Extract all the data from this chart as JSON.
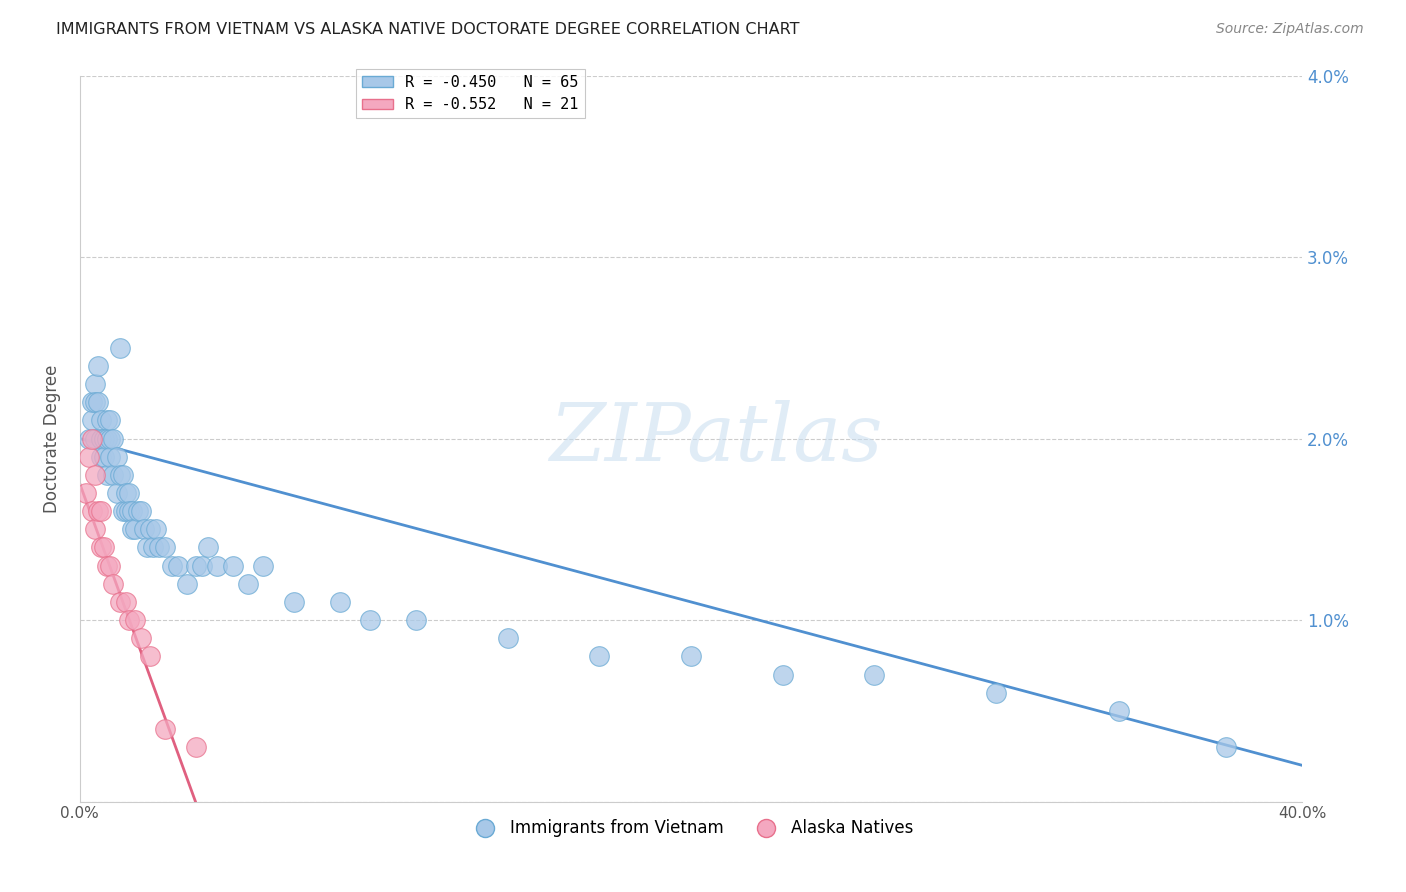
{
  "title": "IMMIGRANTS FROM VIETNAM VS ALASKA NATIVE DOCTORATE DEGREE CORRELATION CHART",
  "source": "Source: ZipAtlas.com",
  "ylabel": "Doctorate Degree",
  "legend_entry1": "R = -0.450   N = 65",
  "legend_entry2": "R = -0.552   N = 21",
  "legend_label1": "Immigrants from Vietnam",
  "legend_label2": "Alaska Natives",
  "blue_color": "#a8c8e8",
  "pink_color": "#f4a8c0",
  "blue_edge_color": "#6aaad4",
  "pink_edge_color": "#e8708c",
  "blue_line_color": "#5090d0",
  "pink_line_color": "#e06080",
  "watermark": "ZIPatlas",
  "xlim": [
    0,
    0.4
  ],
  "ylim": [
    0,
    0.04
  ],
  "blue_scatter_x": [
    0.003,
    0.004,
    0.004,
    0.005,
    0.005,
    0.005,
    0.006,
    0.006,
    0.007,
    0.007,
    0.007,
    0.008,
    0.008,
    0.009,
    0.009,
    0.009,
    0.01,
    0.01,
    0.01,
    0.011,
    0.011,
    0.012,
    0.012,
    0.013,
    0.013,
    0.014,
    0.014,
    0.015,
    0.015,
    0.016,
    0.016,
    0.017,
    0.017,
    0.018,
    0.019,
    0.02,
    0.021,
    0.022,
    0.023,
    0.024,
    0.025,
    0.026,
    0.028,
    0.03,
    0.032,
    0.035,
    0.038,
    0.04,
    0.042,
    0.045,
    0.05,
    0.055,
    0.06,
    0.07,
    0.085,
    0.095,
    0.11,
    0.14,
    0.17,
    0.2,
    0.23,
    0.26,
    0.3,
    0.34,
    0.375
  ],
  "blue_scatter_y": [
    0.02,
    0.021,
    0.022,
    0.023,
    0.022,
    0.02,
    0.022,
    0.024,
    0.021,
    0.02,
    0.019,
    0.02,
    0.019,
    0.021,
    0.02,
    0.018,
    0.02,
    0.019,
    0.021,
    0.02,
    0.018,
    0.019,
    0.017,
    0.018,
    0.025,
    0.016,
    0.018,
    0.016,
    0.017,
    0.017,
    0.016,
    0.016,
    0.015,
    0.015,
    0.016,
    0.016,
    0.015,
    0.014,
    0.015,
    0.014,
    0.015,
    0.014,
    0.014,
    0.013,
    0.013,
    0.012,
    0.013,
    0.013,
    0.014,
    0.013,
    0.013,
    0.012,
    0.013,
    0.011,
    0.011,
    0.01,
    0.01,
    0.009,
    0.008,
    0.008,
    0.007,
    0.007,
    0.006,
    0.005,
    0.003
  ],
  "pink_scatter_x": [
    0.002,
    0.003,
    0.004,
    0.004,
    0.005,
    0.005,
    0.006,
    0.007,
    0.007,
    0.008,
    0.009,
    0.01,
    0.011,
    0.013,
    0.015,
    0.016,
    0.018,
    0.02,
    0.023,
    0.028,
    0.038
  ],
  "pink_scatter_y": [
    0.017,
    0.019,
    0.02,
    0.016,
    0.018,
    0.015,
    0.016,
    0.016,
    0.014,
    0.014,
    0.013,
    0.013,
    0.012,
    0.011,
    0.011,
    0.01,
    0.01,
    0.009,
    0.008,
    0.004,
    0.003
  ],
  "blue_line_x": [
    0.0,
    0.4
  ],
  "blue_line_y_start": 0.02,
  "blue_line_y_end": 0.002,
  "pink_line_x": [
    0.0,
    0.04
  ],
  "pink_line_y_start": 0.0175,
  "pink_line_y_end": -0.001
}
